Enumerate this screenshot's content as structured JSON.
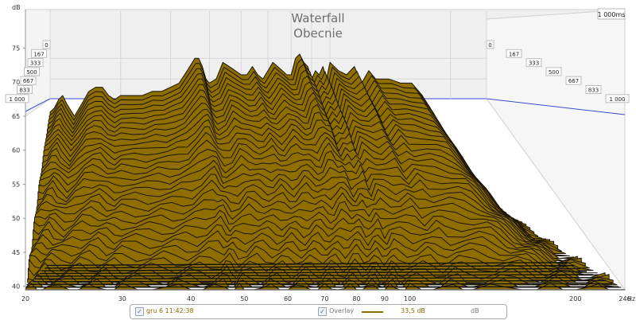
{
  "chart_data": {
    "type": "area",
    "title": "Waterfall",
    "subtitle": "Obecnie",
    "ylabel": "dB",
    "xunit": "Hz",
    "x_scale": "log",
    "xlim": [
      20,
      246
    ],
    "ylim": [
      38,
      78
    ],
    "y_ticks": [
      "40",
      "45",
      "50",
      "55",
      "60",
      "65",
      "70",
      "75"
    ],
    "x_ticks": [
      "20",
      "30",
      "40",
      "50",
      "60",
      "70",
      "80",
      "90",
      "100",
      "200",
      "246"
    ],
    "time_unit_label": "1 000ms",
    "time_slices_ms_labels": [
      "0",
      "167",
      "333",
      "500",
      "667",
      "833",
      "1 000"
    ],
    "fill_color": "#8f6e00",
    "line_color": "#1a1405",
    "back_line_color": "#3a4bd0",
    "back_wall_level_db": 66,
    "grid": true,
    "series": [
      {
        "freq_hz": [
          20,
          20.5,
          21,
          21.5,
          22,
          23,
          24,
          25,
          26,
          27,
          28,
          29,
          30,
          32,
          34,
          36,
          38,
          40,
          42,
          44,
          46,
          47,
          48,
          49,
          50,
          52,
          54,
          56,
          58,
          60,
          62,
          64,
          66,
          68,
          70,
          72,
          74,
          76,
          78,
          80,
          82,
          84,
          86,
          88,
          90,
          92,
          94,
          96,
          98,
          100,
          105,
          110,
          115,
          120,
          125,
          130,
          140,
          150,
          160,
          170,
          180,
          190,
          200,
          210,
          220,
          230,
          246
        ],
        "level_db": [
          62,
          63,
          65,
          66,
          64,
          61,
          64,
          67,
          68,
          68,
          66,
          65,
          66,
          66,
          66,
          67,
          67,
          68,
          69,
          72,
          75,
          75,
          73,
          70,
          69,
          70,
          74,
          73,
          72,
          71,
          71,
          73,
          71,
          70,
          72,
          74,
          73,
          72,
          71,
          71,
          75,
          76,
          74,
          73,
          70,
          72,
          71,
          73,
          70,
          74,
          72,
          71,
          73,
          69,
          72,
          70,
          70,
          69,
          69,
          66,
          62,
          58,
          54,
          50,
          46,
          43,
          41
        ]
      }
    ]
  },
  "legend": {
    "series_label": "gru 6 11:42:38",
    "smoothing_value": "33,5 dB",
    "overlay_label": "Overlay",
    "units_label": "dB"
  }
}
